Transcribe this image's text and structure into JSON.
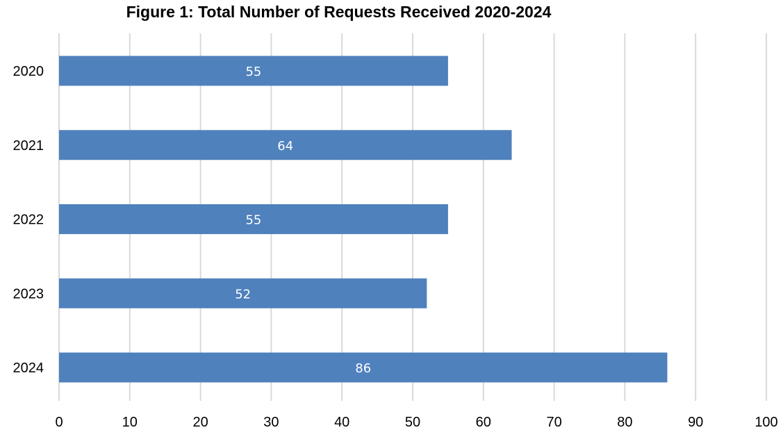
{
  "chart_data": {
    "type": "bar",
    "orientation": "horizontal",
    "title": "Figure 1: Total Number of Requests Received 2020-2024",
    "xlabel": "",
    "ylabel": "",
    "categories": [
      "2020",
      "2021",
      "2022",
      "2023",
      "2024"
    ],
    "values": [
      55,
      64,
      55,
      52,
      86
    ],
    "xlim": [
      0,
      100
    ],
    "xticks": [
      0,
      10,
      20,
      30,
      40,
      50,
      60,
      70,
      80,
      90,
      100
    ],
    "grid": "vertical",
    "legend": "none",
    "bar_color": "#4F81BD",
    "gridline_color": "#D9D9D9",
    "data_label_color": "#FFFFFF"
  }
}
